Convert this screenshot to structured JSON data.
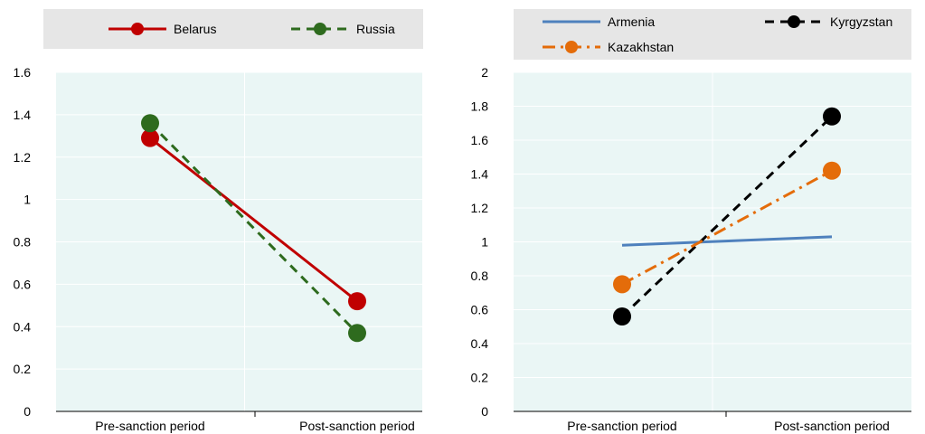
{
  "chart_data": [
    {
      "type": "line",
      "categories": [
        "Pre-sanction period",
        "Post-sanction period"
      ],
      "ylim": [
        0,
        1.6
      ],
      "yticks": [
        "0",
        "0.2",
        "0.4",
        "0.6",
        "0.8",
        "1",
        "1.2",
        "1.4",
        "1.6"
      ],
      "grid": true,
      "legend": "top",
      "series": [
        {
          "name": "Belarus",
          "values": [
            1.29,
            0.52
          ],
          "color": "#c00000",
          "dash": "solid",
          "marker": true
        },
        {
          "name": "Russia",
          "values": [
            1.36,
            0.37
          ],
          "color": "#2e6b1e",
          "dash": "dashed",
          "marker": true
        }
      ]
    },
    {
      "type": "line",
      "categories": [
        "Pre-sanction period",
        "Post-sanction period"
      ],
      "ylim": [
        0,
        2
      ],
      "yticks": [
        "0",
        "0.2",
        "0.4",
        "0.6",
        "0.8",
        "1",
        "1.2",
        "1.4",
        "1.6",
        "1.8",
        "2"
      ],
      "grid": true,
      "legend": "top",
      "series": [
        {
          "name": "Armenia",
          "values": [
            0.98,
            1.03
          ],
          "color": "#4f81bd",
          "dash": "solid",
          "marker": false
        },
        {
          "name": "Kyrgyzstan",
          "values": [
            0.56,
            1.74
          ],
          "color": "#000000",
          "dash": "dashed",
          "marker": true
        },
        {
          "name": "Kazakhstan",
          "values": [
            0.75,
            1.42
          ],
          "color": "#e46c0a",
          "dash": "dashdot",
          "marker": true
        }
      ]
    }
  ]
}
